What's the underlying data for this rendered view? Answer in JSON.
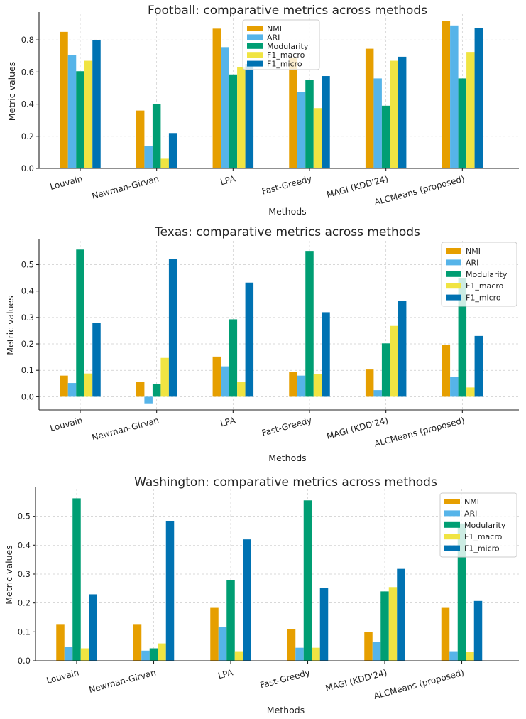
{
  "chart_data": [
    {
      "type": "bar",
      "title": "Football: comparative metrics across methods",
      "xlabel": "Methods",
      "ylabel": "Metric values",
      "ylim": [
        0,
        0.96
      ],
      "yticks": [
        0.0,
        0.2,
        0.4,
        0.6,
        0.8
      ],
      "ytick_labels": [
        "0.0",
        "0.2",
        "0.4",
        "0.6",
        "0.8"
      ],
      "grid": true,
      "legend_position": "top-center",
      "categories": [
        "Louvain",
        "Newman-Girvan",
        "LPA",
        "Fast-Greedy",
        "MAGI (KDD'24)",
        "ALCMeans (proposed)"
      ],
      "series": [
        {
          "name": "NMI",
          "color": "#E69F00",
          "values": [
            0.85,
            0.36,
            0.87,
            0.69,
            0.745,
            0.92
          ]
        },
        {
          "name": "ARI",
          "color": "#56B4E9",
          "values": [
            0.705,
            0.14,
            0.755,
            0.475,
            0.56,
            0.89
          ]
        },
        {
          "name": "Modularity",
          "color": "#009E73",
          "values": [
            0.605,
            0.4,
            0.585,
            0.55,
            0.39,
            0.56
          ]
        },
        {
          "name": "F1_macro",
          "color": "#F0E442",
          "values": [
            0.67,
            0.06,
            0.63,
            0.375,
            0.67,
            0.725
          ]
        },
        {
          "name": "F1_micro",
          "color": "#0072B2",
          "values": [
            0.8,
            0.22,
            0.65,
            0.575,
            0.695,
            0.875
          ]
        }
      ]
    },
    {
      "type": "bar",
      "title": "Texas: comparative metrics across methods",
      "xlabel": "Methods",
      "ylabel": "Metric values",
      "ylim": [
        -0.05,
        0.59
      ],
      "yticks": [
        0.0,
        0.1,
        0.2,
        0.3,
        0.4,
        0.5
      ],
      "ytick_labels": [
        "0.0",
        "0.1",
        "0.2",
        "0.3",
        "0.4",
        "0.5"
      ],
      "grid": true,
      "legend_position": "top-right",
      "categories": [
        "Louvain",
        "Newman-Girvan",
        "LPA",
        "Fast-Greedy",
        "MAGI (KDD'24)",
        "ALCMeans (proposed)"
      ],
      "series": [
        {
          "name": "NMI",
          "color": "#E69F00",
          "values": [
            0.08,
            0.055,
            0.152,
            0.095,
            0.103,
            0.195
          ]
        },
        {
          "name": "ARI",
          "color": "#56B4E9",
          "values": [
            0.052,
            -0.025,
            0.115,
            0.08,
            0.025,
            0.075
          ]
        },
        {
          "name": "Modularity",
          "color": "#009E73",
          "values": [
            0.557,
            0.047,
            0.293,
            0.552,
            0.202,
            0.45
          ]
        },
        {
          "name": "F1_macro",
          "color": "#F0E442",
          "values": [
            0.088,
            0.147,
            0.057,
            0.087,
            0.268,
            0.035
          ]
        },
        {
          "name": "F1_micro",
          "color": "#0072B2",
          "values": [
            0.28,
            0.522,
            0.432,
            0.32,
            0.362,
            0.23
          ]
        }
      ]
    },
    {
      "type": "bar",
      "title": "Washington: comparative metrics across methods",
      "xlabel": "Methods",
      "ylabel": "Metric values",
      "ylim": [
        0,
        0.595
      ],
      "yticks": [
        0.0,
        0.1,
        0.2,
        0.3,
        0.4,
        0.5
      ],
      "ytick_labels": [
        "0.0",
        "0.1",
        "0.2",
        "0.3",
        "0.4",
        "0.5"
      ],
      "grid": true,
      "legend_position": "top-right",
      "categories": [
        "Louvain",
        "Newman-Girvan",
        "LPA",
        "Fast-Greedy",
        "MAGI (KDD'24)",
        "ALCMeans (proposed)"
      ],
      "series": [
        {
          "name": "NMI",
          "color": "#E69F00",
          "values": [
            0.127,
            0.127,
            0.183,
            0.11,
            0.1,
            0.183
          ]
        },
        {
          "name": "ARI",
          "color": "#56B4E9",
          "values": [
            0.048,
            0.035,
            0.118,
            0.045,
            0.065,
            0.033
          ]
        },
        {
          "name": "Modularity",
          "color": "#009E73",
          "values": [
            0.562,
            0.043,
            0.278,
            0.555,
            0.24,
            0.475
          ]
        },
        {
          "name": "F1_macro",
          "color": "#F0E442",
          "values": [
            0.043,
            0.06,
            0.033,
            0.045,
            0.255,
            0.03
          ]
        },
        {
          "name": "F1_micro",
          "color": "#0072B2",
          "values": [
            0.23,
            0.482,
            0.42,
            0.252,
            0.318,
            0.207
          ]
        }
      ]
    }
  ]
}
